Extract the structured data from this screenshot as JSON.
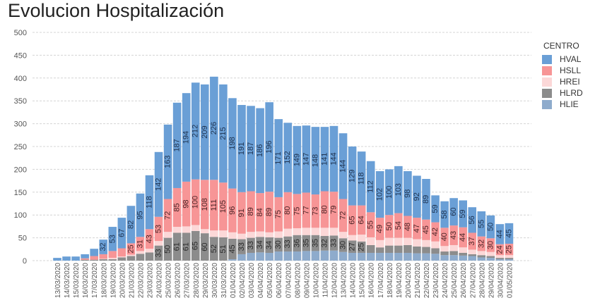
{
  "title": "Evolucion Hospitalización",
  "chart_data": {
    "type": "bar",
    "stacked": true,
    "title": "Evolucion Hospitalización",
    "xlabel": "",
    "ylabel": "",
    "ylim": [
      0,
      500
    ],
    "yticks": [
      0,
      50,
      100,
      150,
      200,
      250,
      300,
      350,
      400,
      450,
      500
    ],
    "grid": true,
    "legend_title": "CENTRO",
    "legend_position": "right",
    "categories": [
      "13/03/2020",
      "14/03/2020",
      "15/03/2020",
      "16/03/2020",
      "17/03/2020",
      "18/03/2020",
      "19/03/2020",
      "20/03/2020",
      "21/03/2020",
      "22/03/2020",
      "23/03/2020",
      "24/03/2020",
      "25/03/2020",
      "26/03/2020",
      "27/03/2020",
      "28/03/2020",
      "29/03/2020",
      "30/03/2020",
      "31/03/2020",
      "01/04/2020",
      "02/04/2020",
      "03/04/2020",
      "04/04/2020",
      "05/04/2020",
      "06/04/2020",
      "07/04/2020",
      "08/04/2020",
      "09/04/2020",
      "10/04/2020",
      "11/04/2020",
      "12/04/2020",
      "13/04/2020",
      "14/04/2020",
      "15/04/2020",
      "16/04/2020",
      "17/04/2020",
      "18/04/2020",
      "19/04/2020",
      "20/04/2020",
      "21/04/2020",
      "22/04/2020",
      "23/04/2020",
      "24/04/2020",
      "25/04/2020",
      "26/04/2020",
      "27/04/2020",
      "28/04/2020",
      "29/04/2020",
      "30/04/2020",
      "01/05/2020"
    ],
    "series": [
      {
        "name": "HLIE",
        "color": "#8eabcc",
        "values": [
          0,
          0,
          0,
          0,
          0,
          0,
          0,
          0,
          0,
          0,
          0,
          0,
          0,
          0,
          0,
          0,
          0,
          0,
          0,
          3,
          14,
          17,
          18,
          17,
          20,
          20,
          20,
          21,
          21,
          22,
          22,
          19,
          17,
          17,
          17,
          17,
          17,
          17,
          17,
          16,
          16,
          15,
          12,
          12,
          11,
          10,
          7,
          6,
          3,
          3
        ]
      },
      {
        "name": "HLRD",
        "color": "#8c8c8c",
        "values": [
          0,
          0,
          0,
          2,
          2,
          3,
          3,
          7,
          10,
          15,
          18,
          33,
          50,
          61,
          61,
          65,
          60,
          52,
          51,
          45,
          33,
          33,
          34,
          34,
          30,
          33,
          36,
          35,
          35,
          32,
          33,
          30,
          27,
          25,
          17,
          12,
          16,
          16,
          17,
          15,
          14,
          12,
          8,
          9,
          6,
          4,
          5,
          4,
          3,
          3
        ]
      },
      {
        "name": "HREI",
        "color": "#fcd8d8",
        "values": [
          0,
          0,
          0,
          0,
          0,
          1,
          3,
          2,
          3,
          6,
          8,
          10,
          13,
          13,
          14,
          13,
          9,
          14,
          15,
          14,
          12,
          13,
          12,
          11,
          14,
          17,
          15,
          16,
          16,
          18,
          17,
          14,
          12,
          15,
          17,
          16,
          17,
          17,
          16,
          16,
          15,
          15,
          12,
          13,
          12,
          10,
          9,
          9,
          6,
          6
        ]
      },
      {
        "name": "HSLL",
        "color": "#f79596",
        "values": [
          0,
          0,
          0,
          3,
          8,
          10,
          15,
          18,
          25,
          31,
          43,
          53,
          72,
          85,
          98,
          100,
          108,
          111,
          105,
          96,
          91,
          89,
          84,
          89,
          75,
          80,
          75,
          77,
          73,
          80,
          79,
          72,
          65,
          64,
          55,
          49,
          50,
          54,
          48,
          47,
          45,
          42,
          40,
          43,
          44,
          37,
          32,
          30,
          24,
          25
        ]
      },
      {
        "name": "HVAL",
        "color": "#6a9fd6",
        "values": [
          6,
          9,
          9,
          9,
          16,
          32,
          53,
          67,
          82,
          95,
          118,
          142,
          163,
          187,
          194,
          212,
          209,
          226,
          215,
          198,
          191,
          187,
          186,
          196,
          171,
          152,
          149,
          147,
          148,
          141,
          144,
          144,
          129,
          118,
          112,
          102,
          100,
          103,
          98,
          92,
          89,
          59,
          58,
          60,
          59,
          56,
          55,
          50,
          44,
          45
        ]
      }
    ],
    "legend_order": [
      "HVAL",
      "HSLL",
      "HREI",
      "HLRD",
      "HLIE"
    ]
  }
}
